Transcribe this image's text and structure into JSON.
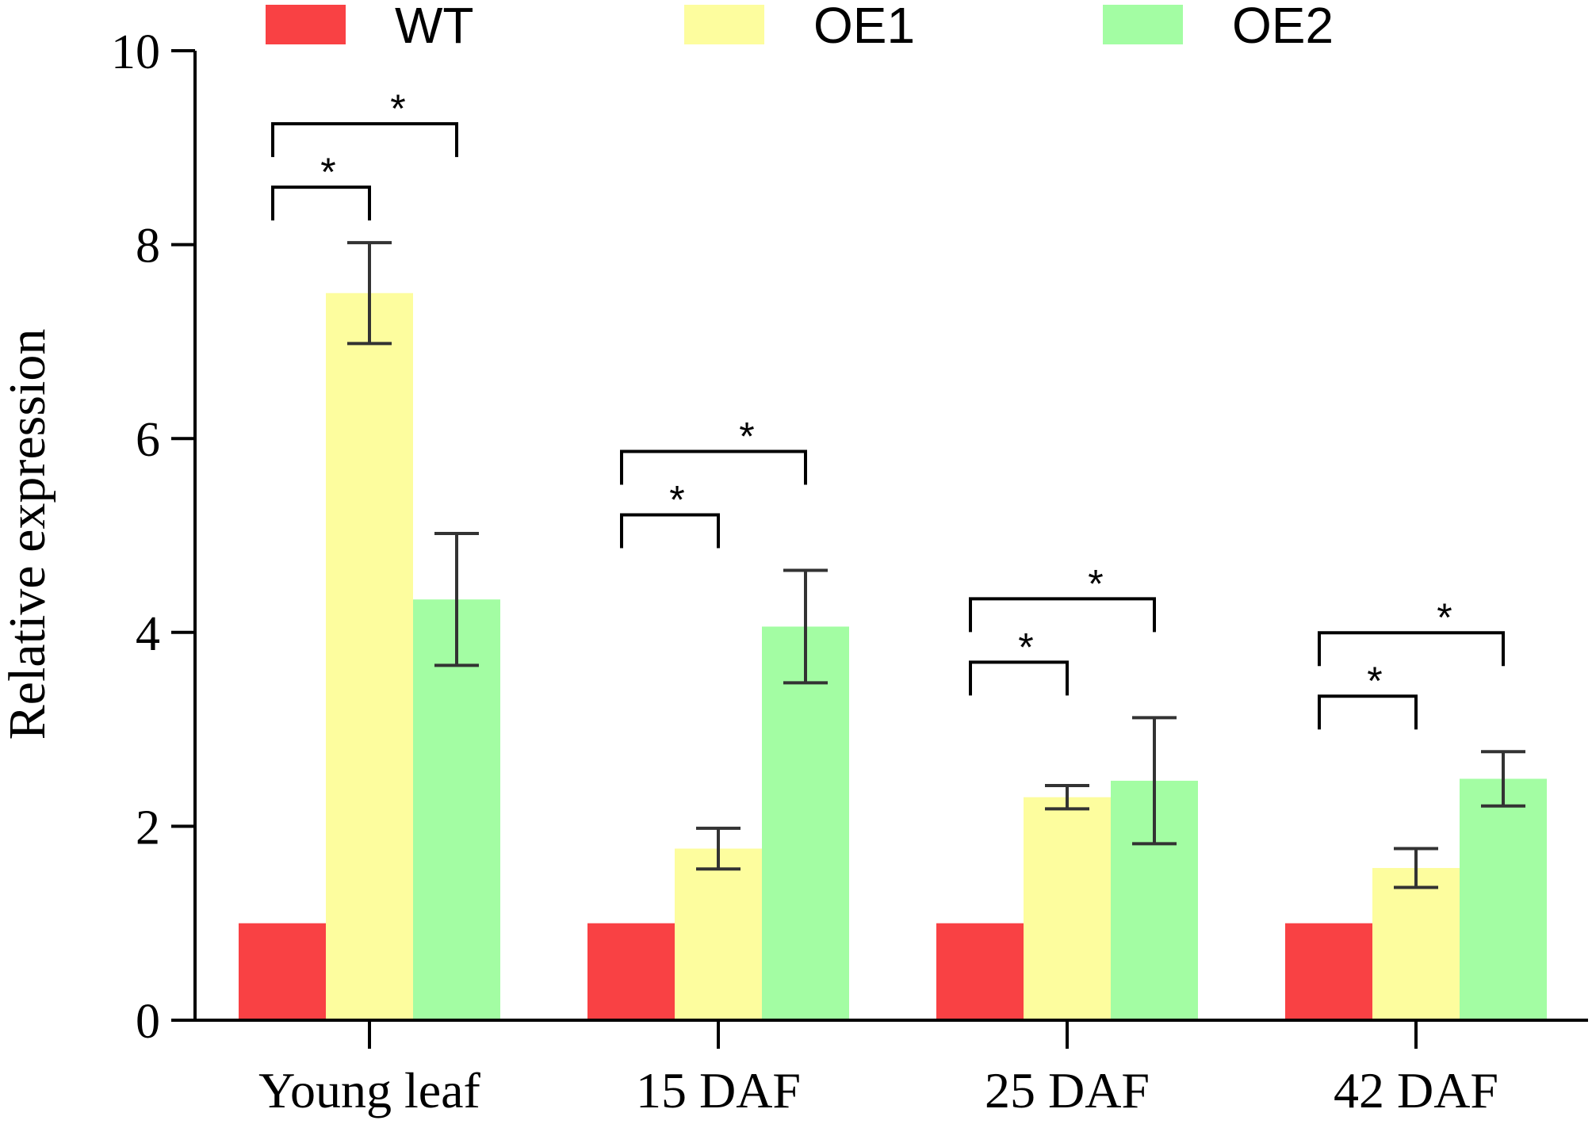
{
  "chart_data": {
    "type": "bar",
    "title": "",
    "xlabel": "",
    "ylabel": "Relative expression",
    "ylim": [
      0,
      10
    ],
    "yticks": [
      0,
      2,
      4,
      6,
      8,
      10
    ],
    "ytick_labels": [
      "0",
      "2",
      "4",
      "6",
      "8",
      "10"
    ],
    "categories": [
      "Young leaf",
      "15 DAF",
      "25 DAF",
      "42 DAF"
    ],
    "legend_position": "top",
    "grid": false,
    "series": [
      {
        "name": "WT",
        "color": "#f94144",
        "values": [
          1.0,
          1.0,
          1.0,
          1.0
        ],
        "errors": [
          null,
          null,
          null,
          null
        ]
      },
      {
        "name": "OE1",
        "color": "#fdfd9e",
        "values": [
          7.5,
          1.77,
          2.3,
          1.57
        ],
        "errors": [
          0.52,
          0.21,
          0.12,
          0.2
        ]
      },
      {
        "name": "OE2",
        "color": "#a3fda3",
        "values": [
          4.34,
          4.06,
          2.47,
          2.49
        ],
        "errors": [
          0.68,
          0.58,
          0.65,
          0.28
        ]
      }
    ],
    "significance": [
      {
        "category": "Young leaf",
        "from": "WT",
        "to": "OE1",
        "label": "*"
      },
      {
        "category": "Young leaf",
        "from": "WT",
        "to": "OE2",
        "label": "*"
      },
      {
        "category": "15 DAF",
        "from": "WT",
        "to": "OE1",
        "label": "*"
      },
      {
        "category": "15 DAF",
        "from": "WT",
        "to": "OE2",
        "label": "*"
      },
      {
        "category": "25 DAF",
        "from": "WT",
        "to": "OE1",
        "label": "*"
      },
      {
        "category": "25 DAF",
        "from": "WT",
        "to": "OE2",
        "label": "*"
      },
      {
        "category": "42 DAF",
        "from": "WT",
        "to": "OE1",
        "label": "*"
      },
      {
        "category": "42 DAF",
        "from": "WT",
        "to": "OE2",
        "label": "*"
      }
    ]
  }
}
